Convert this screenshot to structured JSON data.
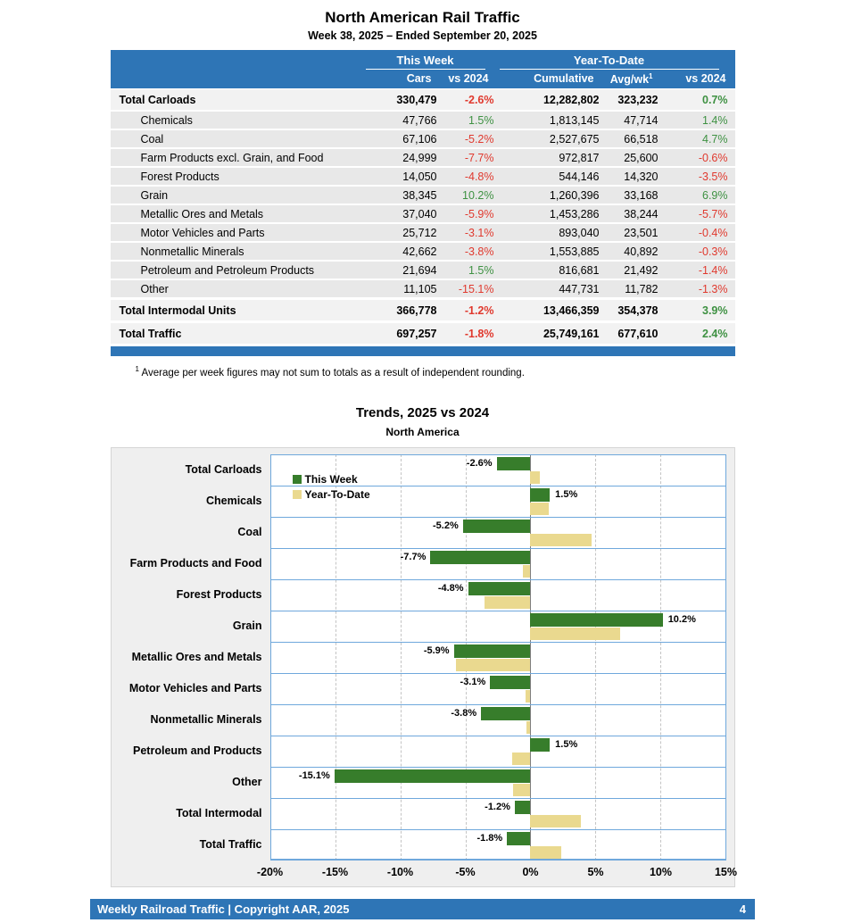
{
  "report": {
    "title": "North American Rail Traffic",
    "subtitle": "Week 38, 2025 – Ended September 20, 2025"
  },
  "table": {
    "group_headers": {
      "this_week": "This Week",
      "year_to_date": "Year-To-Date"
    },
    "col_headers": {
      "cars": "Cars",
      "week_vs": "vs 2024",
      "cumulative": "Cumulative",
      "avg_wk": "Avg/wk",
      "avg_wk_sup": "1",
      "ytd_vs": "vs 2024"
    },
    "rows": [
      {
        "label": "Total Carloads",
        "cars": "330,479",
        "week_vs": "-2.6%",
        "cumulative": "12,282,802",
        "avg_wk": "323,232",
        "ytd_vs": "0.7%",
        "total": true
      },
      {
        "label": "Chemicals",
        "cars": "47,766",
        "week_vs": "1.5%",
        "cumulative": "1,813,145",
        "avg_wk": "47,714",
        "ytd_vs": "1.4%",
        "total": false
      },
      {
        "label": "Coal",
        "cars": "67,106",
        "week_vs": "-5.2%",
        "cumulative": "2,527,675",
        "avg_wk": "66,518",
        "ytd_vs": "4.7%",
        "total": false
      },
      {
        "label": "Farm Products excl. Grain, and Food",
        "cars": "24,999",
        "week_vs": "-7.7%",
        "cumulative": "972,817",
        "avg_wk": "25,600",
        "ytd_vs": "-0.6%",
        "total": false
      },
      {
        "label": "Forest Products",
        "cars": "14,050",
        "week_vs": "-4.8%",
        "cumulative": "544,146",
        "avg_wk": "14,320",
        "ytd_vs": "-3.5%",
        "total": false
      },
      {
        "label": "Grain",
        "cars": "38,345",
        "week_vs": "10.2%",
        "cumulative": "1,260,396",
        "avg_wk": "33,168",
        "ytd_vs": "6.9%",
        "total": false
      },
      {
        "label": "Metallic Ores and Metals",
        "cars": "37,040",
        "week_vs": "-5.9%",
        "cumulative": "1,453,286",
        "avg_wk": "38,244",
        "ytd_vs": "-5.7%",
        "total": false
      },
      {
        "label": "Motor Vehicles and Parts",
        "cars": "25,712",
        "week_vs": "-3.1%",
        "cumulative": "893,040",
        "avg_wk": "23,501",
        "ytd_vs": "-0.4%",
        "total": false
      },
      {
        "label": "Nonmetallic Minerals",
        "cars": "42,662",
        "week_vs": "-3.8%",
        "cumulative": "1,553,885",
        "avg_wk": "40,892",
        "ytd_vs": "-0.3%",
        "total": false
      },
      {
        "label": "Petroleum and Petroleum Products",
        "cars": "21,694",
        "week_vs": "1.5%",
        "cumulative": "816,681",
        "avg_wk": "21,492",
        "ytd_vs": "-1.4%",
        "total": false
      },
      {
        "label": "Other",
        "cars": "11,105",
        "week_vs": "-15.1%",
        "cumulative": "447,731",
        "avg_wk": "11,782",
        "ytd_vs": "-1.3%",
        "total": false
      },
      {
        "label": "Total Intermodal Units",
        "cars": "366,778",
        "week_vs": "-1.2%",
        "cumulative": "13,466,359",
        "avg_wk": "354,378",
        "ytd_vs": "3.9%",
        "total": true
      },
      {
        "label": "Total Traffic",
        "cars": "697,257",
        "week_vs": "-1.8%",
        "cumulative": "25,749,161",
        "avg_wk": "677,610",
        "ytd_vs": "2.4%",
        "total": true
      }
    ],
    "footnote_sup": "1",
    "footnote": "Average per week figures may not sum to totals as a result of independent rounding."
  },
  "chart": {
    "title": "Trends, 2025 vs 2024",
    "subtitle": "North America"
  },
  "chart_data": {
    "type": "bar",
    "orientation": "horizontal",
    "title": "Trends, 2025 vs 2024",
    "subtitle": "North America",
    "categories": [
      "Total Carloads",
      "Chemicals",
      "Coal",
      "Farm Products and Food",
      "Forest Products",
      "Grain",
      "Metallic Ores and Metals",
      "Motor Vehicles and Parts",
      "Nonmetallic Minerals",
      "Petroleum and Products",
      "Other",
      "Total Intermodal",
      "Total Traffic"
    ],
    "series": [
      {
        "name": "This Week",
        "color": "#377D2B",
        "values": [
          -2.6,
          1.5,
          -5.2,
          -7.7,
          -4.8,
          10.2,
          -5.9,
          -3.1,
          -3.8,
          1.5,
          -15.1,
          -1.2,
          -1.8
        ],
        "labels": [
          "-2.6%",
          "1.5%",
          "-5.2%",
          "-7.7%",
          "-4.8%",
          "10.2%",
          "-5.9%",
          "-3.1%",
          "-3.8%",
          "1.5%",
          "-15.1%",
          "-1.2%",
          "-1.8%"
        ]
      },
      {
        "name": "Year-To-Date",
        "color": "#EAD98F",
        "values": [
          0.7,
          1.4,
          4.7,
          -0.6,
          -3.5,
          6.9,
          -5.7,
          -0.4,
          -0.3,
          -1.4,
          -1.3,
          3.9,
          2.4
        ]
      }
    ],
    "xlim": [
      -20,
      15
    ],
    "xtick_values": [
      -20,
      -15,
      -10,
      -5,
      0,
      5,
      10,
      15
    ],
    "xtick_labels": [
      "-20%",
      "-15%",
      "-10%",
      "-5%",
      "0%",
      "5%",
      "10%",
      "15%"
    ],
    "gridline_values": [
      -15,
      -10,
      -5,
      5,
      10
    ],
    "legend_position": "top-left",
    "grid": true
  },
  "colors": {
    "header_blue": "#2E75B6",
    "positive_green": "#3E9142",
    "negative_red": "#E0392E",
    "band_line_blue": "#6FA8DC",
    "bar_green": "#377D2B",
    "bar_tan": "#EAD98F"
  },
  "footer": {
    "text": "Weekly Railroad Traffic | Copyright AAR, 2025",
    "page": "4"
  }
}
